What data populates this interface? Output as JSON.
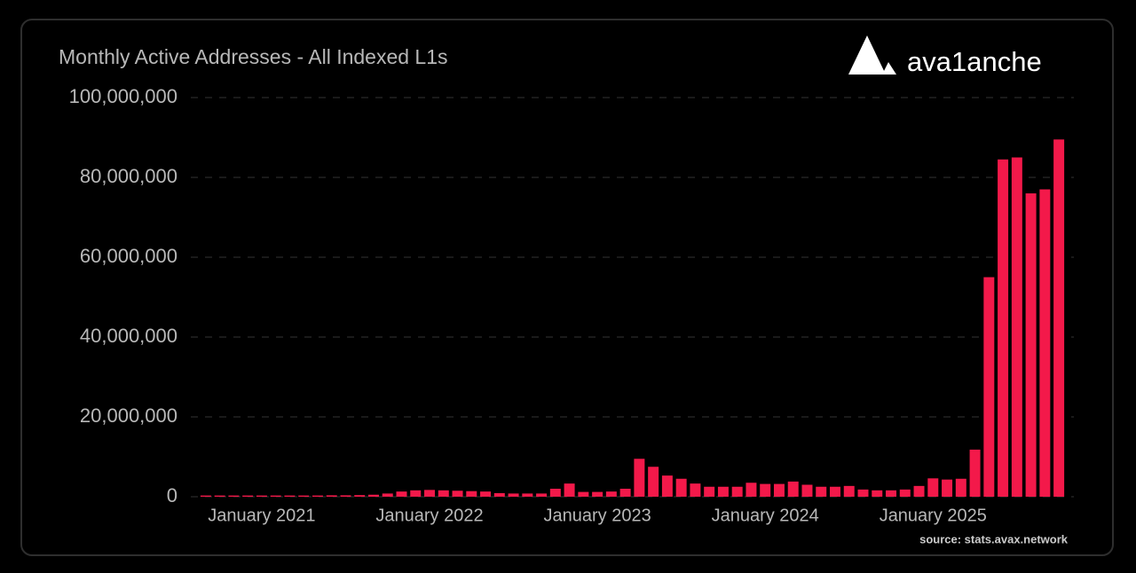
{
  "chart_data": {
    "type": "bar",
    "title": "Monthly Active Addresses - All Indexed L1s",
    "brand": "ava1anche",
    "source": "source: stats.avax.network",
    "color": "#f3194a",
    "grid": true,
    "categories": [
      null,
      null,
      null,
      null,
      "January 2021",
      null,
      null,
      null,
      null,
      null,
      null,
      null,
      null,
      null,
      null,
      null,
      "January 2022",
      null,
      null,
      null,
      null,
      null,
      null,
      null,
      null,
      null,
      null,
      null,
      "January 2023",
      null,
      null,
      null,
      null,
      null,
      null,
      null,
      null,
      null,
      null,
      null,
      "January 2024",
      null,
      null,
      null,
      null,
      null,
      null,
      null,
      null,
      null,
      null,
      null,
      "January 2025",
      null,
      null,
      null,
      null,
      null,
      null,
      null,
      null,
      null
    ],
    "values": [
      300000,
      300000,
      300000,
      300000,
      300000,
      300000,
      300000,
      300000,
      300000,
      350000,
      350000,
      400000,
      500000,
      800000,
      1300000,
      1600000,
      1700000,
      1600000,
      1500000,
      1400000,
      1300000,
      900000,
      800000,
      800000,
      800000,
      2000000,
      3300000,
      1200000,
      1200000,
      1300000,
      2000000,
      9500000,
      7500000,
      5300000,
      4500000,
      3300000,
      2500000,
      2500000,
      2500000,
      3500000,
      3200000,
      3200000,
      3800000,
      3000000,
      2500000,
      2500000,
      2700000,
      1800000,
      1600000,
      1600000,
      1800000,
      2700000,
      4600000,
      4300000,
      4500000,
      11800000,
      55000000,
      84500000,
      85000000,
      76000000,
      77000000,
      89500000
    ],
    "ylim": [
      0,
      100000000
    ],
    "yticks": [
      0,
      {
        "value": 20000000,
        "label": "20,000,000"
      },
      {
        "value": 40000000,
        "label": "40,000,000"
      },
      {
        "value": 60000000,
        "label": "60,000,000"
      },
      {
        "value": 80000000,
        "label": "80,000,000"
      },
      {
        "value": 100000000,
        "label": "100,000,000"
      }
    ]
  }
}
